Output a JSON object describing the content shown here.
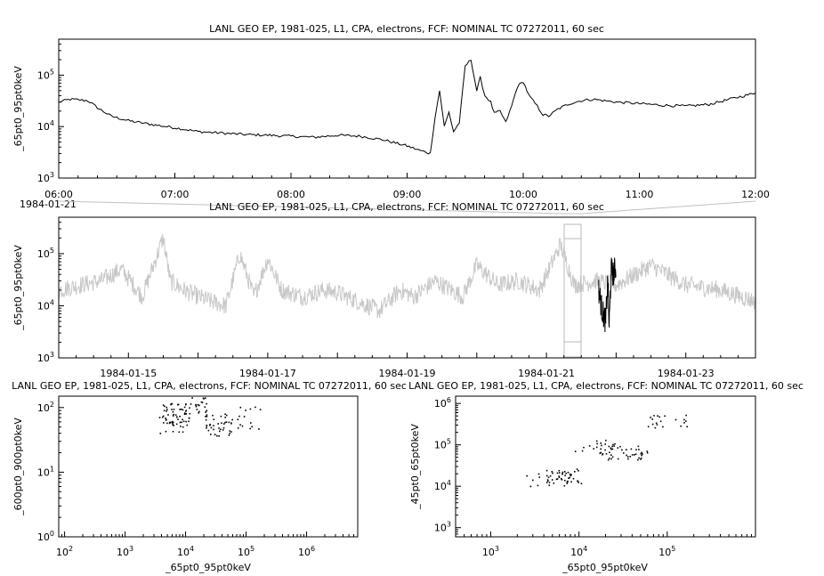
{
  "chart_data": [
    {
      "id": "timeseries-zoom",
      "type": "line",
      "title": "LANL GEO EP, 1981-025, L1, CPA, electrons, FCF: NOMINAL TC 07272011, 60 sec",
      "ylabel": "_65pt0_95pt0keV",
      "xlabel": "",
      "yscale": "log",
      "ylim": [
        1000,
        500000
      ],
      "ytick_labels": [
        {
          "base": "10",
          "exp": "3"
        },
        {
          "base": "10",
          "exp": "4"
        },
        {
          "base": "10",
          "exp": "5"
        }
      ],
      "xlim": [
        "06:00",
        "12:00"
      ],
      "xtick_labels": [
        "06:00",
        "07:00",
        "08:00",
        "09:00",
        "10:00",
        "11:00",
        "12:00"
      ],
      "date_label": "1984-01-21",
      "series": [
        {
          "color": "#000000",
          "x_hours": [
            6.0,
            6.1,
            6.25,
            6.35,
            6.45,
            6.6,
            6.8,
            7.0,
            7.2,
            7.4,
            7.6,
            7.8,
            8.0,
            8.2,
            8.4,
            8.6,
            8.8,
            9.0,
            9.1,
            9.2,
            9.24,
            9.28,
            9.32,
            9.36,
            9.4,
            9.45,
            9.5,
            9.55,
            9.6,
            9.63,
            9.67,
            9.72,
            9.75,
            9.8,
            9.85,
            9.9,
            9.95,
            10.0,
            10.05,
            10.12,
            10.17,
            10.22,
            10.3,
            10.4,
            10.5,
            10.6,
            10.8,
            11.0,
            11.2,
            11.4,
            11.6,
            11.8,
            12.0
          ],
          "values": [
            30000,
            34000,
            32000,
            22000,
            16000,
            13000,
            11000,
            9500,
            8000,
            7500,
            7000,
            6800,
            6500,
            6200,
            6800,
            6500,
            5500,
            4200,
            3500,
            3000,
            15000,
            50000,
            10000,
            19000,
            8000,
            12000,
            150000,
            200000,
            50000,
            90000,
            40000,
            30000,
            18000,
            20000,
            12000,
            25000,
            60000,
            75000,
            40000,
            25000,
            17000,
            16000,
            22000,
            28000,
            32000,
            34000,
            30000,
            28000,
            26000,
            25000,
            27000,
            35000,
            45000
          ]
        }
      ]
    },
    {
      "id": "timeseries-overview",
      "type": "line",
      "title": "LANL GEO EP, 1981-025, L1, CPA, electrons, FCF: NOMINAL TC 07272011, 60 sec",
      "ylabel": "_65pt0_95pt0keV",
      "xlabel": "",
      "yscale": "log",
      "ylim": [
        1000,
        500000
      ],
      "ytick_labels": [
        {
          "base": "10",
          "exp": "3"
        },
        {
          "base": "10",
          "exp": "4"
        },
        {
          "base": "10",
          "exp": "5"
        }
      ],
      "xlim": [
        "1984-01-14",
        "1984-01-24"
      ],
      "xtick_labels": [
        "1984-01-15",
        "1984-01-17",
        "1984-01-19",
        "1984-01-21",
        "1984-01-23"
      ],
      "series": [
        {
          "color": "#c8c8c8",
          "x_days": [
            0.0,
            0.3,
            0.6,
            0.9,
            1.2,
            1.5,
            1.6,
            1.8,
            2.0,
            2.2,
            2.4,
            2.6,
            2.8,
            3.0,
            3.2,
            3.5,
            3.8,
            4.0,
            4.3,
            4.6,
            4.9,
            5.1,
            5.4,
            5.8,
            6.0,
            6.3,
            6.6,
            6.9,
            7.2,
            7.4,
            7.7,
            8.0,
            8.5,
            9.0,
            9.5,
            9.8,
            10.0
          ],
          "values": [
            20000,
            25000,
            30000,
            50000,
            15000,
            200000,
            30000,
            20000,
            15000,
            12000,
            10000,
            100000,
            15000,
            80000,
            20000,
            15000,
            20000,
            18000,
            12000,
            8000,
            20000,
            15000,
            30000,
            15000,
            60000,
            25000,
            30000,
            20000,
            150000,
            25000,
            30000,
            25000,
            60000,
            25000,
            20000,
            15000,
            12000
          ]
        },
        {
          "color": "#000000",
          "x_days": [
            7.75,
            7.8,
            7.85,
            7.88,
            7.9,
            7.93,
            7.96,
            8.0
          ],
          "values": [
            20000,
            8000,
            5000,
            30000,
            4000,
            50000,
            40000,
            60000
          ]
        }
      ]
    },
    {
      "id": "scatter-600-900",
      "type": "scatter",
      "title": "LANL GEO EP, 1981-025, L1, CPA, electrons, FCF: NOMINAL TC 07272011, 60 sec",
      "xlabel": "_65pt0_95pt0keV",
      "ylabel": "_600pt0_900pt0keV",
      "xscale": "log",
      "yscale": "log",
      "xlim": [
        80,
        7000000
      ],
      "ylim": [
        1,
        150
      ],
      "xtick_labels": [
        {
          "base": "10",
          "exp": "2"
        },
        {
          "base": "10",
          "exp": "3"
        },
        {
          "base": "10",
          "exp": "4"
        },
        {
          "base": "10",
          "exp": "5"
        },
        {
          "base": "10",
          "exp": "6"
        }
      ],
      "ytick_labels": [
        {
          "base": "10",
          "exp": "0"
        },
        {
          "base": "10",
          "exp": "1"
        },
        {
          "base": "10",
          "exp": "2"
        }
      ],
      "clusters": [
        {
          "x": 7000,
          "y": 80,
          "count": 45
        },
        {
          "x": 35000,
          "y": 55,
          "count": 40
        },
        {
          "x": 15000,
          "y": 110,
          "count": 30
        },
        {
          "x": 6000,
          "y": 60,
          "count": 20
        },
        {
          "x": 100000,
          "y": 70,
          "count": 15
        }
      ]
    },
    {
      "id": "scatter-45-65",
      "type": "scatter",
      "title": "LANL GEO EP, 1981-025, L1, CPA, electrons, FCF: NOMINAL TC 07272011, 60 sec",
      "xlabel": "_65pt0_95pt0keV",
      "ylabel": "_45pt0_65pt0keV",
      "xscale": "log",
      "yscale": "log",
      "xlim": [
        400,
        1000000
      ],
      "ylim": [
        600,
        1500000
      ],
      "xtick_labels": [
        {
          "base": "10",
          "exp": "3"
        },
        {
          "base": "10",
          "exp": "4"
        },
        {
          "base": "10",
          "exp": "5"
        }
      ],
      "ytick_labels": [
        {
          "base": "10",
          "exp": "3"
        },
        {
          "base": "10",
          "exp": "4"
        },
        {
          "base": "10",
          "exp": "5"
        },
        {
          "base": "10",
          "exp": "6"
        }
      ],
      "clusters": [
        {
          "x": 6500,
          "y": 18000,
          "count": 40
        },
        {
          "x": 35000,
          "y": 65000,
          "count": 35
        },
        {
          "x": 15000,
          "y": 90000,
          "count": 25
        },
        {
          "x": 100000,
          "y": 400000,
          "count": 20
        },
        {
          "x": 4000,
          "y": 15000,
          "count": 15
        }
      ]
    }
  ]
}
